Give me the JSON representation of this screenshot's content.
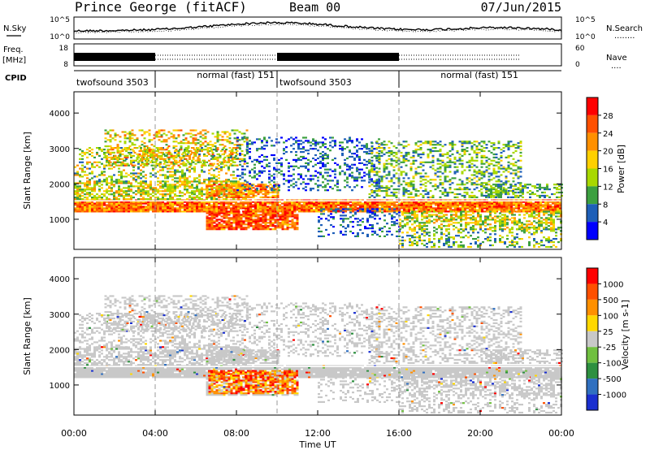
{
  "header": {
    "station": "Prince George (fitACF)",
    "beam": "Beam 00",
    "date": "07/Jun/2015"
  },
  "labels": {
    "nsky": "N.Sky",
    "nsearch": "N.Search",
    "freq": "Freq.",
    "freq_unit": "[MHz]",
    "nave": "Nave",
    "cpid": "CPID",
    "dotted": "........",
    "dotted_short": "...."
  },
  "noise_axis": {
    "left_ticks": [
      "10^5",
      "10^0"
    ],
    "right_ticks": [
      "10^5",
      "10^0"
    ]
  },
  "freq_axis": {
    "left_ticks": [
      "18",
      "8"
    ],
    "right_ticks": [
      "60",
      "0"
    ]
  },
  "cpid_segments": [
    {
      "label": "twofsound 3503",
      "start_h": 0.0,
      "end_h": 4.0
    },
    {
      "label": "normal (fast) 151",
      "start_h": 4.0,
      "end_h": 10.0
    },
    {
      "label": "twofsound 3503",
      "start_h": 10.0,
      "end_h": 16.0
    },
    {
      "label": "normal (fast) 151",
      "start_h": 16.0,
      "end_h": 22.0
    }
  ],
  "chart_data": [
    {
      "type": "heatmap",
      "title": "Power",
      "xlabel": "",
      "ylabel": "Slant Range [km]",
      "xlim_hours": [
        0,
        24
      ],
      "ylim": [
        150,
        4600
      ],
      "y_ticks": [
        1000,
        2000,
        3000,
        4000
      ],
      "colorbar_label": "Power [dB]",
      "colorbar_ticks": [
        "4",
        "8",
        "12",
        "16",
        "20",
        "24",
        "28"
      ],
      "colorbar_colors": [
        "#0000ff",
        "#1e5fb8",
        "#3ca040",
        "#a8d800",
        "#ffd000",
        "#ff9000",
        "#ff5000",
        "#ff0000"
      ]
    },
    {
      "type": "heatmap",
      "title": "Velocity",
      "xlabel": "Time UT",
      "ylabel": "Slant Range [km]",
      "xlim_hours": [
        0,
        24
      ],
      "ylim": [
        150,
        4600
      ],
      "y_ticks": [
        1000,
        2000,
        3000,
        4000
      ],
      "x_ticks": [
        "00:00",
        "04:00",
        "08:00",
        "12:00",
        "16:00",
        "20:00",
        "00:00"
      ],
      "colorbar_label": "Velocity [m s-1]",
      "colorbar_ticks": [
        "1000",
        "500",
        "100",
        "25",
        "-25",
        "-100",
        "-500",
        "-1000"
      ],
      "colorbar_colors": [
        "#1a2fd0",
        "#3070c0",
        "#2e9040",
        "#70c040",
        "#c8c8c8",
        "#ffd800",
        "#ff9000",
        "#ff5000",
        "#ff0000"
      ]
    }
  ]
}
